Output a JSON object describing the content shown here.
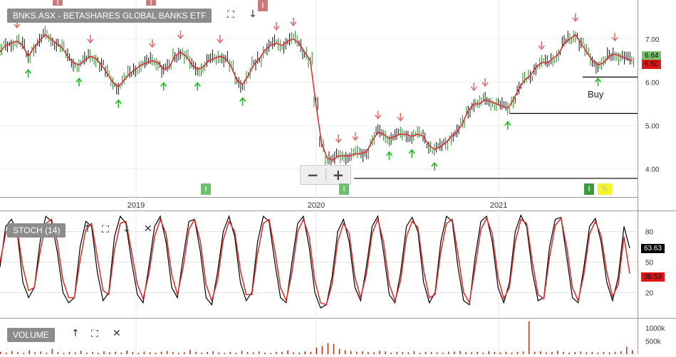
{
  "header": {
    "price_title": "BNKS.ASX - BETASHARES GLOBAL BANKS ETF",
    "stoch_title": "STOCH (14)",
    "volume_title": "VOLUME"
  },
  "controls": {
    "zoom_out": "−",
    "zoom_in": "+",
    "expand_icon": "⛶",
    "down_icon": "↓",
    "up_icon": "↑",
    "close_icon": "✕",
    "flag_letter": "I"
  },
  "annotations": {
    "buy_label": "Buy"
  },
  "colors": {
    "price_line": "#d9292a",
    "stoch_d": "#d9292a",
    "stoch_k": "#000000",
    "volume": "#b23a1a",
    "up_arrow": "#22bb22",
    "down_arrow": "#e07070",
    "support": "#000000"
  },
  "chart_data": [
    {
      "type": "line",
      "title": "BNKS.ASX - BETASHARES GLOBAL BANKS ETF",
      "x_tick_labels": [
        "2019",
        "2020",
        "2021"
      ],
      "y_tick_labels": [
        "4.00",
        "5.00",
        "6.00",
        "7.00"
      ],
      "ylim": [
        3.35,
        7.9
      ],
      "last_price_labels": [
        "6.64",
        "6.50"
      ],
      "support_levels": [
        3.78,
        5.28,
        6.12
      ],
      "series": [
        {
          "values": [
            6.7,
            6.85,
            6.9,
            6.95,
            6.85,
            6.6,
            6.8,
            6.95,
            7.1,
            7.0,
            6.9,
            6.8,
            6.6,
            6.45,
            6.4,
            6.5,
            6.6,
            6.55,
            6.4,
            6.2,
            6.0,
            5.9,
            6.05,
            6.2,
            6.3,
            6.4,
            6.45,
            6.5,
            6.45,
            6.3,
            6.35,
            6.6,
            6.7,
            6.6,
            6.4,
            6.3,
            6.35,
            6.5,
            6.55,
            6.6,
            6.55,
            6.35,
            6.05,
            5.95,
            6.15,
            6.4,
            6.55,
            6.75,
            6.85,
            6.9,
            6.85,
            6.95,
            7.0,
            6.9,
            6.7,
            6.5,
            5.5,
            4.6,
            4.25,
            4.2,
            4.3,
            4.3,
            4.3,
            4.35,
            4.35,
            4.4,
            4.65,
            4.85,
            4.8,
            4.7,
            4.75,
            4.8,
            4.8,
            4.75,
            4.8,
            4.75,
            4.55,
            4.45,
            4.5,
            4.6,
            4.75,
            4.85,
            5.05,
            5.35,
            5.5,
            5.5,
            5.6,
            5.55,
            5.5,
            5.45,
            5.4,
            5.6,
            5.85,
            6.05,
            6.15,
            6.35,
            6.45,
            6.45,
            6.55,
            6.65,
            6.9,
            7.0,
            7.1,
            6.9,
            6.7,
            6.5,
            6.4,
            6.45,
            6.6,
            6.65,
            6.6,
            6.55,
            6.5
          ]
        }
      ]
    },
    {
      "type": "line",
      "title": "STOCH (14)",
      "y_tick_labels": [
        "20",
        "50",
        "80"
      ],
      "ylim": [
        0,
        100
      ],
      "last_values": [
        "63.63",
        "38.53"
      ],
      "series": [
        {
          "values": [
            45,
            85,
            92,
            80,
            30,
            15,
            25,
            70,
            95,
            90,
            60,
            20,
            10,
            15,
            65,
            90,
            85,
            40,
            12,
            20,
            75,
            95,
            88,
            50,
            18,
            10,
            45,
            85,
            95,
            70,
            25,
            15,
            55,
            90,
            92,
            60,
            15,
            8,
            40,
            80,
            95,
            75,
            30,
            12,
            20,
            70,
            95,
            90,
            50,
            15,
            10,
            50,
            88,
            95,
            65,
            20,
            5,
            8,
            35,
            80,
            92,
            70,
            25,
            12,
            45,
            85,
            95,
            60,
            18,
            10,
            40,
            85,
            94,
            80,
            30,
            10,
            20,
            70,
            95,
            90,
            45,
            12,
            8,
            55,
            90,
            95,
            70,
            25,
            10,
            30,
            80,
            96,
            85,
            40,
            12,
            15,
            65,
            92,
            94,
            55,
            15,
            10,
            45,
            85,
            93,
            70,
            30,
            12,
            35,
            85,
            63.63
          ]
        },
        {
          "values": [
            50,
            78,
            88,
            82,
            45,
            22,
            25,
            60,
            88,
            92,
            70,
            32,
            15,
            15,
            52,
            82,
            88,
            55,
            22,
            18,
            62,
            88,
            90,
            60,
            28,
            14,
            38,
            75,
            92,
            78,
            38,
            18,
            45,
            82,
            92,
            70,
            28,
            12,
            32,
            72,
            90,
            80,
            42,
            18,
            18,
            58,
            88,
            92,
            62,
            25,
            12,
            40,
            80,
            92,
            75,
            32,
            10,
            8,
            28,
            70,
            88,
            78,
            35,
            15,
            38,
            78,
            92,
            70,
            28,
            12,
            32,
            75,
            90,
            84,
            42,
            15,
            18,
            60,
            88,
            92,
            58,
            20,
            10,
            45,
            82,
            93,
            78,
            35,
            14,
            25,
            70,
            92,
            88,
            50,
            18,
            14,
            55,
            86,
            93,
            65,
            25,
            12,
            38,
            78,
            90,
            76,
            40,
            16,
            28,
            75,
            38.53
          ]
        }
      ]
    },
    {
      "type": "bar",
      "title": "VOLUME",
      "y_tick_labels": [
        "500k",
        "1000k"
      ],
      "ylim": [
        0,
        1300000
      ],
      "values": [
        90000,
        60000,
        120000,
        80000,
        50000,
        150000,
        70000,
        100000,
        60000,
        200000,
        80000,
        50000,
        90000,
        70000,
        130000,
        60000,
        80000,
        50000,
        110000,
        70000,
        90000,
        60000,
        140000,
        80000,
        50000,
        100000,
        70000,
        60000,
        90000,
        120000,
        80000,
        50000,
        70000,
        160000,
        90000,
        60000,
        80000,
        110000,
        70000,
        50000,
        90000,
        60000,
        130000,
        80000,
        70000,
        100000,
        60000,
        50000,
        90000,
        80000,
        140000,
        70000,
        60000,
        100000,
        80000,
        250000,
        300000,
        420000,
        380000,
        200000,
        150000,
        120000,
        90000,
        110000,
        80000,
        70000,
        130000,
        100000,
        60000,
        90000,
        80000,
        70000,
        110000,
        60000,
        90000,
        80000,
        70000,
        60000,
        90000,
        100000,
        120000,
        80000,
        70000,
        90000,
        60000,
        110000,
        80000,
        70000,
        90000,
        60000,
        80000,
        100000,
        1250000,
        90000,
        110000,
        70000,
        80000,
        130000,
        90000,
        60000,
        80000,
        100000,
        70000,
        90000,
        60000,
        80000,
        70000,
        90000,
        110000,
        280000,
        150000
      ]
    }
  ]
}
